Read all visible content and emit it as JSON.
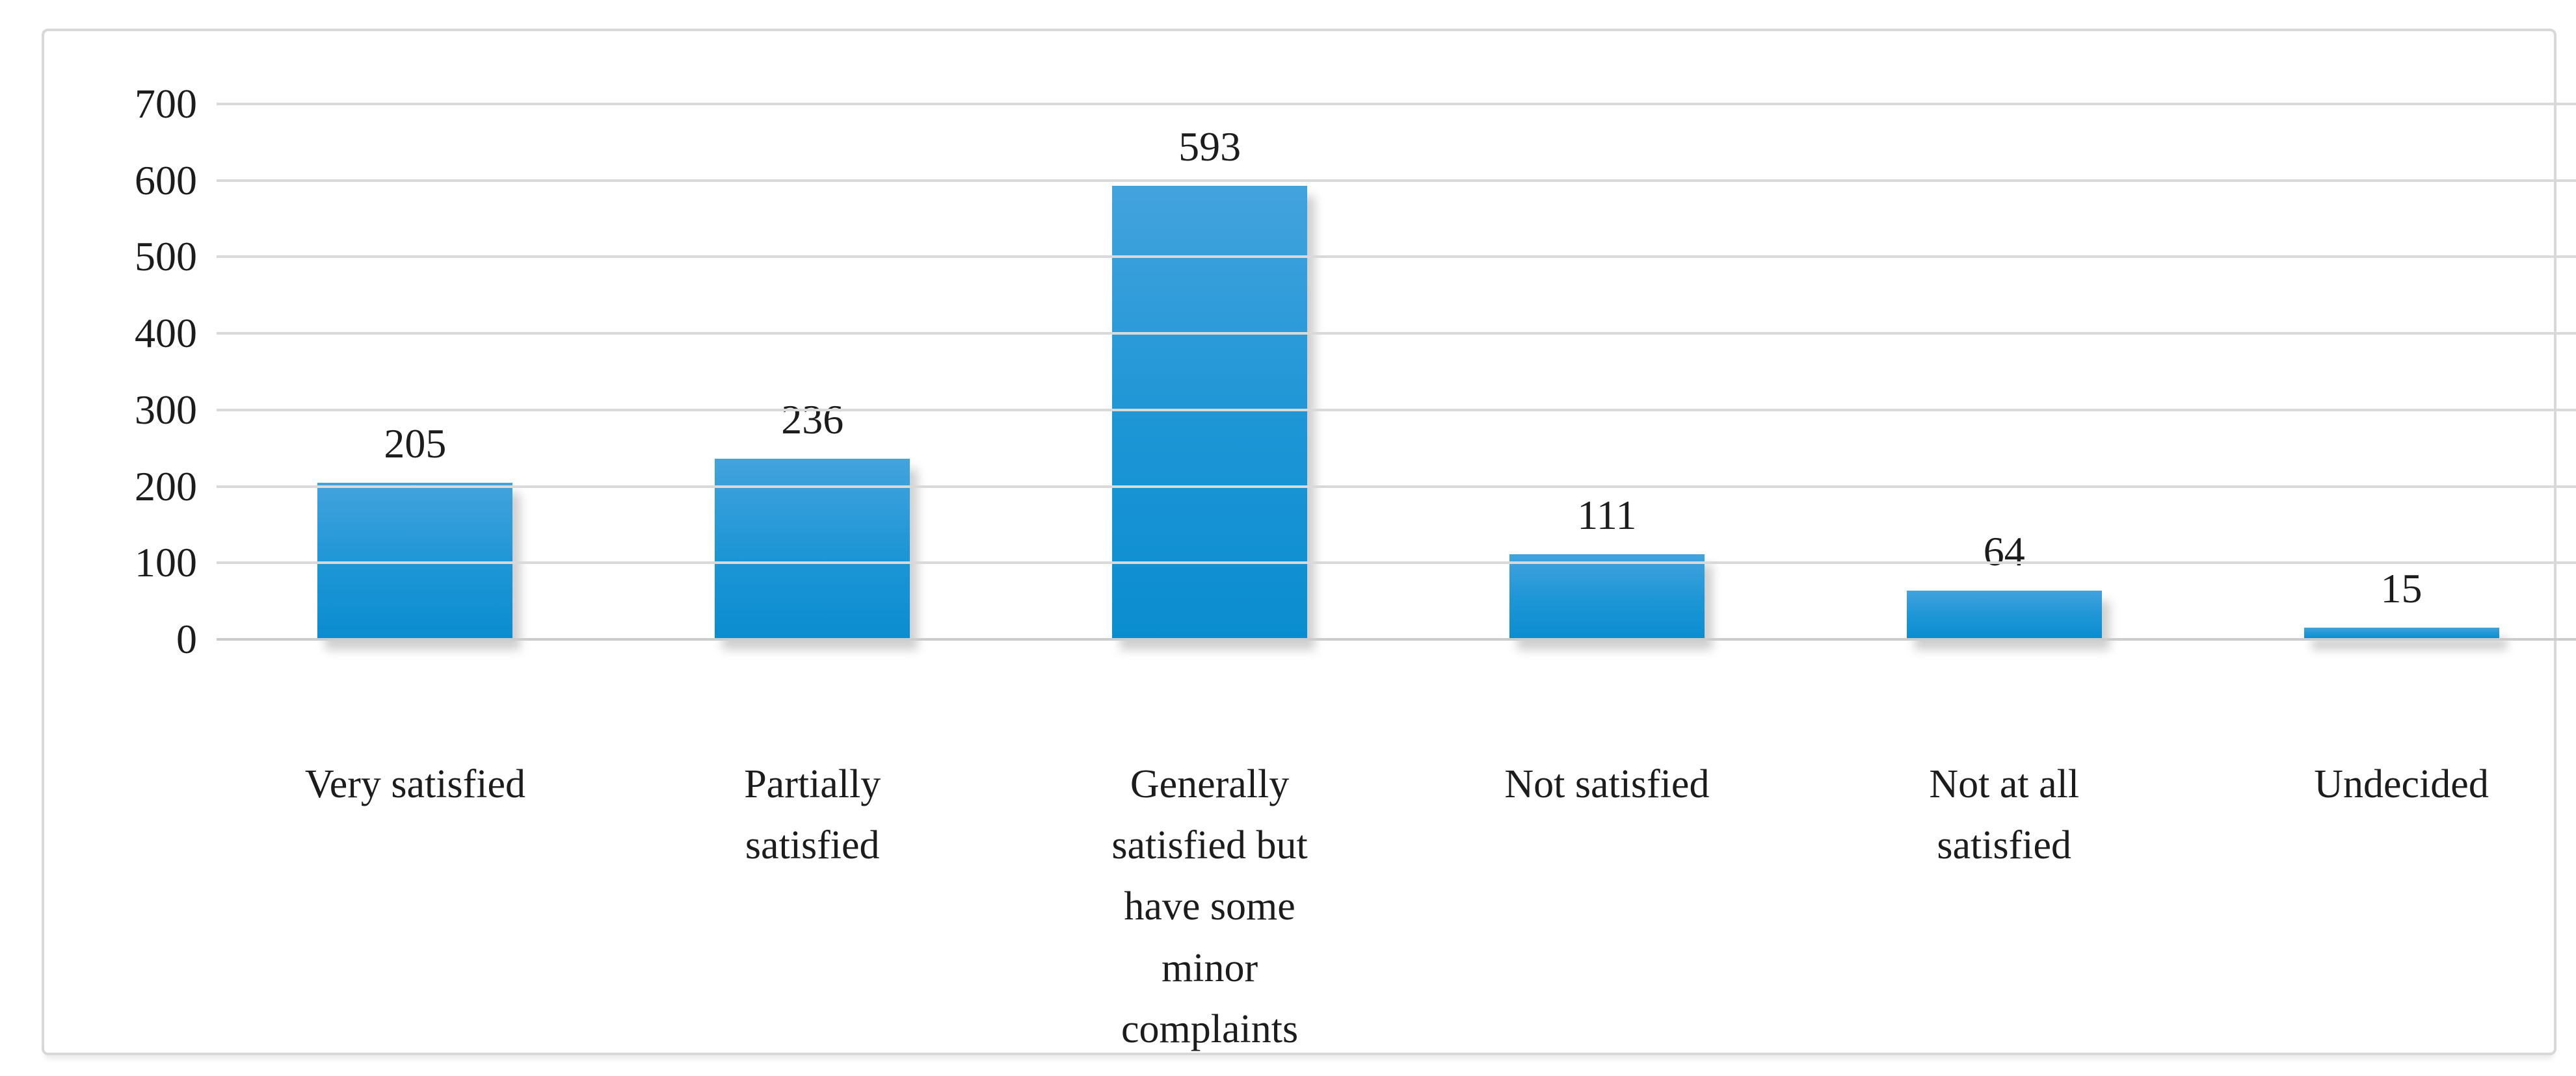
{
  "figure": {
    "background": "#ffffff",
    "frame_border_color": "#d8d8d8"
  },
  "chart_data": {
    "type": "bar",
    "title": "",
    "xlabel": "",
    "ylabel": "",
    "categories": [
      "Very satisfied",
      "Partially\nsatisfied",
      "Generally\nsatisfied but\nhave some\nminor\ncomplaints",
      "Not satisfied",
      "Not at all\nsatisfied",
      "Undecided"
    ],
    "values": [
      205,
      236,
      593,
      111,
      64,
      15
    ],
    "ylim": [
      0,
      700
    ],
    "yticks": [
      0,
      100,
      200,
      300,
      400,
      500,
      600,
      700
    ],
    "grid": "horizontal-only",
    "legend": "none",
    "data_labels_position": "above-bars",
    "bar_color_top": "#43a3dd",
    "bar_color_bottom": "#0a8dd0",
    "gridline_color": "#d9d9d9",
    "text_color": "#1c1c1c"
  }
}
